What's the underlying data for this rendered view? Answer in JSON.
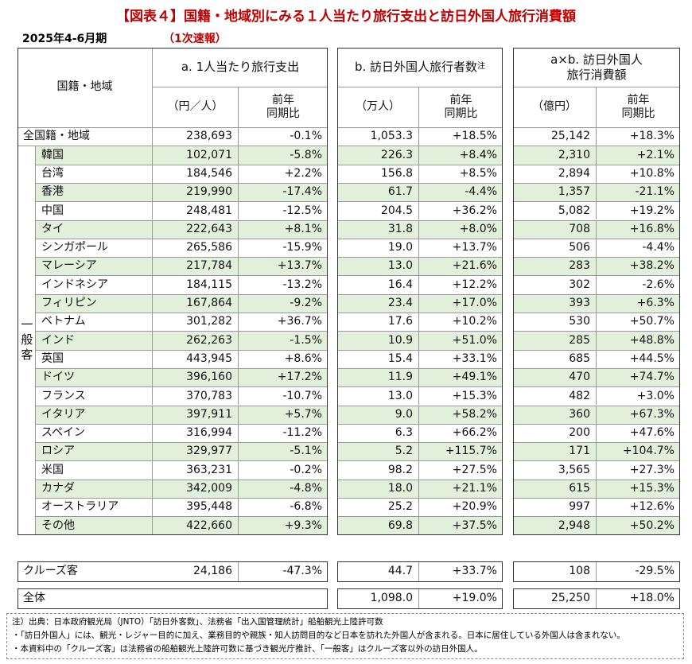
{
  "title": "【図表４】国籍・地域別にみる１人当たり旅行支出と訪日外国人旅行消費額",
  "period": "2025年4-6月期",
  "status": "（1次速報）",
  "header": {
    "region": "国籍・地域",
    "segment": "一般客",
    "groups": [
      {
        "title": "a. 1人当たり旅行支出",
        "unit": "（円／人）",
        "yoy": "前年\n同期比"
      },
      {
        "title": "b. 訪日外国人旅行者数",
        "note_mark": "注",
        "unit": "（万人）",
        "yoy": "前年\n同期比"
      },
      {
        "title": "a×b. 訪日外国人\n旅行消費額",
        "unit": "（億円）",
        "yoy": "前年\n同期比"
      }
    ]
  },
  "rows": [
    [
      "全国籍・地域",
      "238,693",
      "-0.1%",
      "1,053.3",
      "+18.5%",
      "25,142",
      "+18.3%"
    ],
    [
      "韓国",
      "102,071",
      "-5.8%",
      "226.3",
      "+8.4%",
      "2,310",
      "+2.1%"
    ],
    [
      "台湾",
      "184,546",
      "+2.2%",
      "156.8",
      "+8.5%",
      "2,894",
      "+10.8%"
    ],
    [
      "香港",
      "219,990",
      "-17.4%",
      "61.7",
      "-4.4%",
      "1,357",
      "-21.1%"
    ],
    [
      "中国",
      "248,481",
      "-12.5%",
      "204.5",
      "+36.2%",
      "5,082",
      "+19.2%"
    ],
    [
      "タイ",
      "222,643",
      "+8.1%",
      "31.8",
      "+8.0%",
      "708",
      "+16.8%"
    ],
    [
      "シンガポール",
      "265,586",
      "-15.9%",
      "19.0",
      "+13.7%",
      "506",
      "-4.4%"
    ],
    [
      "マレーシア",
      "217,784",
      "+13.7%",
      "13.0",
      "+21.6%",
      "283",
      "+38.2%"
    ],
    [
      "インドネシア",
      "184,115",
      "-13.2%",
      "16.4",
      "+12.2%",
      "302",
      "-2.6%"
    ],
    [
      "フィリピン",
      "167,864",
      "-9.2%",
      "23.4",
      "+17.0%",
      "393",
      "+6.3%"
    ],
    [
      "ベトナム",
      "301,282",
      "+36.7%",
      "17.6",
      "+10.2%",
      "530",
      "+50.7%"
    ],
    [
      "インド",
      "262,263",
      "-1.5%",
      "10.9",
      "+51.0%",
      "285",
      "+48.8%"
    ],
    [
      "英国",
      "443,945",
      "+8.6%",
      "15.4",
      "+33.1%",
      "685",
      "+44.5%"
    ],
    [
      "ドイツ",
      "396,160",
      "+17.2%",
      "11.9",
      "+49.1%",
      "470",
      "+74.7%"
    ],
    [
      "フランス",
      "370,783",
      "-10.7%",
      "13.0",
      "+15.3%",
      "482",
      "+3.0%"
    ],
    [
      "イタリア",
      "397,911",
      "+5.7%",
      "9.0",
      "+58.2%",
      "360",
      "+67.3%"
    ],
    [
      "スペイン",
      "316,994",
      "-11.2%",
      "6.3",
      "+66.2%",
      "200",
      "+47.6%"
    ],
    [
      "ロシア",
      "329,977",
      "-5.1%",
      "5.2",
      "+115.7%",
      "171",
      "+104.7%"
    ],
    [
      "米国",
      "363,231",
      "-0.2%",
      "98.2",
      "+27.5%",
      "3,565",
      "+27.3%"
    ],
    [
      "カナダ",
      "342,009",
      "-4.8%",
      "18.0",
      "+21.1%",
      "615",
      "+15.3%"
    ],
    [
      "オーストラリア",
      "395,448",
      "-6.8%",
      "25.2",
      "+20.9%",
      "997",
      "+12.6%"
    ],
    [
      "その他",
      "422,660",
      "+9.3%",
      "69.8",
      "+37.5%",
      "2,948",
      "+50.2%"
    ]
  ],
  "cruise": [
    "クルーズ客",
    "24,186",
    "-47.3%",
    "44.7",
    "+33.7%",
    "108",
    "-29.5%"
  ],
  "total": [
    "全体",
    "1,098.0",
    "+19.0%",
    "25,250",
    "+18.0%"
  ],
  "notes": [
    "注）出典：日本政府観光局（JNTO）「訪日外客数」、法務省「出入国管理統計」船舶観光上陸許可数",
    "・「訪日外国人」には、観光・レジャー目的に加え、業務目的や親族・知人訪問目的など日本を訪れた外国人が含まれる。日本に居住している外国人は含まれない。",
    "・本資料中の「クルーズ客」は法務省の船舶観光上陸許可数に基づき観光庁推計、「一般客」はクルーズ客以外の訪日外国人。"
  ]
}
